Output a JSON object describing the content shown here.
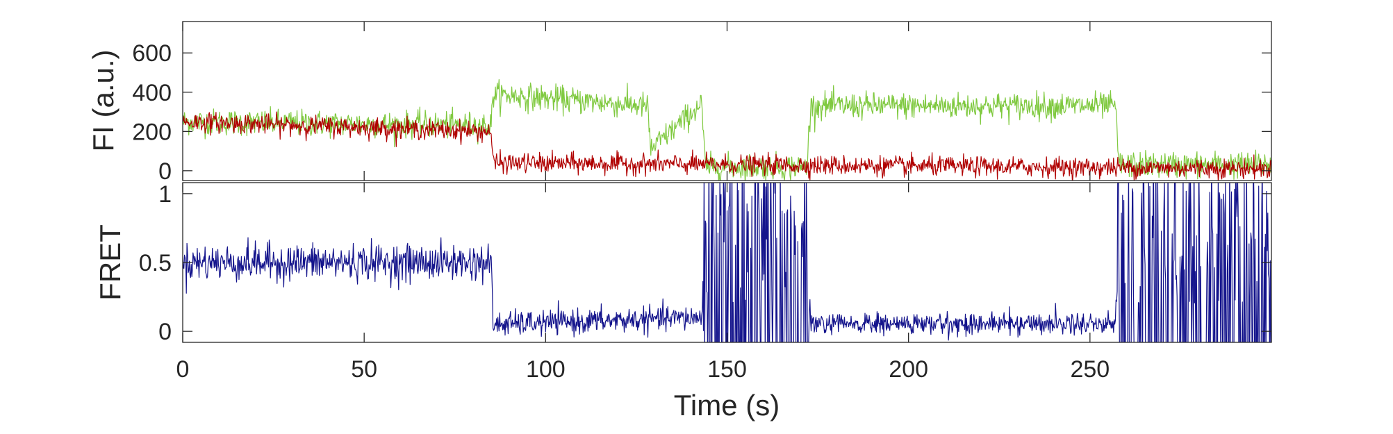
{
  "chart_data": [
    {
      "type": "line",
      "ylabel": "FI (a.u.)",
      "xlim": [
        0,
        300
      ],
      "ylim": [
        -50,
        760
      ],
      "yticks": [
        0,
        200,
        400,
        600
      ],
      "grid": false,
      "colors": {
        "donor": "#7fc93f",
        "acceptor": "#b00000"
      },
      "series": [
        {
          "key": "donor",
          "x": [
            0,
            85,
            85.5,
            128,
            129,
            143,
            144,
            172,
            173,
            257,
            258,
            300
          ],
          "y": [
            250,
            230,
            390,
            330,
            110,
            340,
            20,
            20,
            330,
            330,
            30,
            30
          ],
          "noise": 60
        },
        {
          "key": "acceptor",
          "x": [
            0,
            85,
            85.5,
            300
          ],
          "y": [
            250,
            200,
            40,
            10
          ],
          "noise": 45
        }
      ]
    },
    {
      "type": "line",
      "ylabel": "FRET",
      "xlabel": "Time (s)",
      "xlim": [
        0,
        300
      ],
      "ylim": [
        -0.08,
        1.08
      ],
      "yticks": [
        0,
        0.5,
        1
      ],
      "xticks": [
        0,
        50,
        100,
        150,
        200,
        250
      ],
      "grid": false,
      "colors": {
        "fret": "#14148c"
      },
      "series": [
        {
          "key": "fret",
          "x": [
            0,
            85,
            85.5,
            143,
            144,
            172,
            173,
            257,
            258,
            300
          ],
          "y": [
            0.5,
            0.5,
            0.05,
            0.1,
            0.5,
            0.5,
            0.05,
            0.06,
            0.5,
            0.5
          ],
          "noise": [
            0.12,
            0.12,
            0.08,
            0.08,
            0.9,
            0.9,
            0.07,
            0.07,
            0.9,
            0.9
          ]
        }
      ]
    }
  ]
}
